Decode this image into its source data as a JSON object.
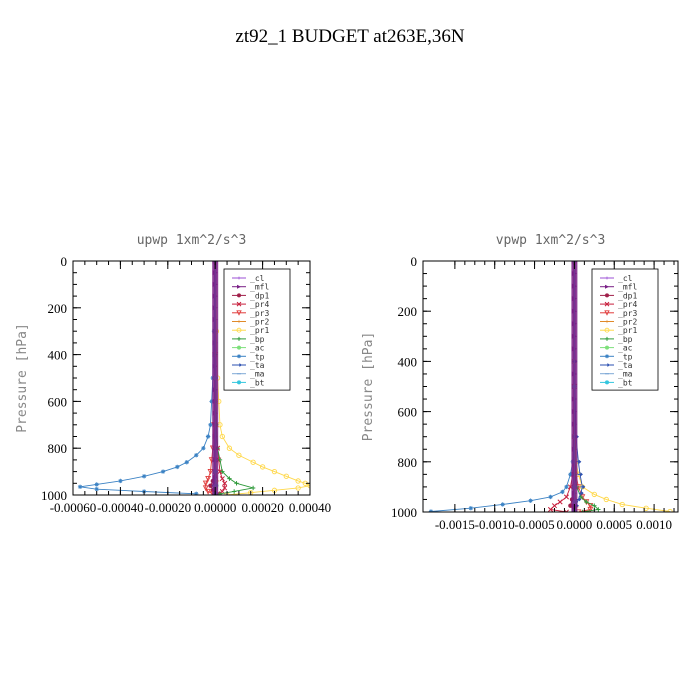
{
  "page_title": "zt92_1  BUDGET at263E,36N",
  "legend_entries": [
    {
      "label": "_cl",
      "color": "#9b4fd6",
      "marker": "star"
    },
    {
      "label": "_mfl",
      "color": "#7a1f86",
      "marker": "triangle-right"
    },
    {
      "label": "_dp1",
      "color": "#a0204a",
      "marker": "circle-filled"
    },
    {
      "label": "_pr4",
      "color": "#c71e3c",
      "marker": "x"
    },
    {
      "label": "_pr3",
      "color": "#e03c3c",
      "marker": "triangle-down"
    },
    {
      "label": "_pr2",
      "color": "#e08a2a",
      "marker": "star"
    },
    {
      "label": "_pr1",
      "color": "#ffd84a",
      "marker": "circle"
    },
    {
      "label": "_bp",
      "color": "#2e9a3a",
      "marker": "plus"
    },
    {
      "label": "_ac",
      "color": "#7de07a",
      "marker": "circle-filled"
    },
    {
      "label": "_tp",
      "color": "#3b82c4",
      "marker": "asterisk"
    },
    {
      "label": "_ta",
      "color": "#2a4fb0",
      "marker": "arrow"
    },
    {
      "label": "_ma",
      "color": "#7ea8d6",
      "marker": "dash"
    },
    {
      "label": "_bt",
      "color": "#34c6de",
      "marker": "circle-filled"
    }
  ],
  "chart_data": [
    {
      "type": "line",
      "title": "upwp   1xm^2/s^3",
      "ylabel": "Pressure [hPa]",
      "xlabel": "",
      "xlim": [
        -0.0006,
        0.0004
      ],
      "ylim": [
        1000,
        0
      ],
      "xticks": [
        -0.0006,
        -0.0004,
        -0.0002,
        0.0,
        0.0002,
        0.0004
      ],
      "xtick_labels": [
        "-0.00060",
        "-0.00040",
        "-0.00020",
        "0.00000",
        "0.00020",
        "0.00040"
      ],
      "yticks": [
        0,
        200,
        400,
        600,
        800,
        1000
      ],
      "ytick_labels": [
        "0",
        "200",
        "400",
        "600",
        "800",
        "1000"
      ],
      "series": [
        {
          "name": "_cl",
          "y": [
            0,
            50,
            100,
            150,
            200,
            250,
            300,
            350,
            400,
            450,
            500,
            550,
            600,
            650,
            700,
            750,
            800,
            850,
            900,
            925,
            950,
            975,
            990
          ],
          "x": [
            0,
            0,
            0,
            0,
            0,
            0,
            0,
            0,
            0,
            0,
            0,
            0,
            0,
            0,
            0,
            0,
            0,
            0,
            0,
            0,
            0,
            0,
            0
          ]
        },
        {
          "name": "_mfl",
          "y": [
            0,
            50,
            100,
            150,
            200,
            250,
            300,
            350,
            400,
            450,
            500,
            550,
            600,
            650,
            700,
            750,
            800,
            850,
            900,
            925,
            950,
            975,
            990
          ],
          "x": [
            0,
            0,
            0,
            0,
            0,
            0,
            0,
            0,
            0,
            0,
            0,
            0,
            0,
            0,
            0,
            0,
            0,
            0,
            0,
            0,
            0,
            0,
            0
          ]
        },
        {
          "name": "_dp1",
          "y": [
            0,
            400,
            800,
            900,
            940,
            960,
            980,
            995
          ],
          "x": [
            0,
            0,
            0,
            0,
            -1e-05,
            -2e-05,
            -1e-05,
            0
          ]
        },
        {
          "name": "_pr4",
          "y": [
            0,
            400,
            700,
            800,
            850,
            900,
            930,
            950,
            970,
            985,
            995
          ],
          "x": [
            0,
            0,
            5e-06,
            1e-05,
            1.5e-05,
            2e-05,
            3e-05,
            4e-05,
            4e-05,
            3e-05,
            1e-05
          ]
        },
        {
          "name": "_pr3",
          "y": [
            0,
            400,
            700,
            800,
            850,
            900,
            930,
            950,
            970,
            985,
            995
          ],
          "x": [
            0,
            0,
            -5e-06,
            -1e-05,
            -1.5e-05,
            -2e-05,
            -3e-05,
            -4e-05,
            -4e-05,
            -3e-05,
            -1e-05
          ]
        },
        {
          "name": "_pr2",
          "y": [
            0,
            400,
            800,
            900,
            940,
            970,
            995
          ],
          "x": [
            0,
            0,
            0,
            5e-06,
            1e-05,
            5e-06,
            0
          ]
        },
        {
          "name": "_pr1",
          "y": [
            0,
            300,
            500,
            600,
            700,
            750,
            800,
            830,
            860,
            880,
            900,
            920,
            940,
            950,
            960,
            970,
            980,
            990,
            1000
          ],
          "x": [
            0,
            5e-06,
            1e-05,
            1.5e-05,
            2e-05,
            3e-05,
            6e-05,
            0.0001,
            0.00016,
            0.0002,
            0.00025,
            0.0003,
            0.00035,
            0.00038,
            0.0004,
            0.00035,
            0.00025,
            0.00015,
            5e-05
          ]
        },
        {
          "name": "_bp",
          "y": [
            0,
            400,
            700,
            800,
            850,
            900,
            930,
            950,
            970,
            985,
            995
          ],
          "x": [
            0,
            0,
            5e-06,
            1e-05,
            2e-05,
            3e-05,
            6e-05,
            9e-05,
            0.00016,
            8e-05,
            2e-05
          ]
        },
        {
          "name": "_ac",
          "y": [
            0,
            500,
            900,
            960,
            995
          ],
          "x": [
            0,
            0,
            0,
            5e-06,
            0
          ]
        },
        {
          "name": "_tp",
          "y": [
            0,
            300,
            500,
            600,
            700,
            750,
            800,
            830,
            860,
            880,
            900,
            920,
            940,
            955,
            965,
            975,
            985,
            995
          ],
          "x": [
            0,
            -5e-06,
            -1e-05,
            -1.5e-05,
            -2e-05,
            -3e-05,
            -5e-05,
            -8e-05,
            -0.00012,
            -0.00016,
            -0.00022,
            -0.0003,
            -0.0004,
            -0.0005,
            -0.00057,
            -0.0005,
            -0.0003,
            -8e-05
          ]
        },
        {
          "name": "_ta",
          "y": [
            0,
            500,
            900,
            960,
            995
          ],
          "x": [
            0,
            0,
            0,
            -5e-06,
            0
          ]
        },
        {
          "name": "_ma",
          "y": [
            0,
            500,
            900,
            960,
            995
          ],
          "x": [
            0,
            0,
            0,
            0,
            0
          ]
        },
        {
          "name": "_bt",
          "y": [
            0,
            500,
            900,
            960,
            995
          ],
          "x": [
            0,
            0,
            0,
            3e-06,
            0
          ]
        }
      ],
      "legend_position": "top-right"
    },
    {
      "type": "line",
      "title": "vpwp   1xm^2/s^3",
      "ylabel": "Pressure [hPa]",
      "xlabel": "",
      "xlim": [
        -0.0019,
        0.0013
      ],
      "ylim": [
        1000,
        0
      ],
      "xticks": [
        -0.0015,
        -0.001,
        -0.0005,
        0.0,
        0.0005,
        0.001
      ],
      "xtick_labels": [
        "-0.0015",
        "-0.0010",
        "-0.0005",
        "0.0000",
        "0.0005",
        "0.0010"
      ],
      "yticks": [
        0,
        200,
        400,
        600,
        800,
        1000
      ],
      "ytick_labels": [
        "0",
        "200",
        "400",
        "600",
        "800",
        "1000"
      ],
      "series": [
        {
          "name": "_cl",
          "y": [
            0,
            50,
            100,
            150,
            200,
            250,
            300,
            350,
            400,
            450,
            500,
            550,
            600,
            650,
            700,
            750,
            800,
            850,
            900,
            925,
            950,
            975,
            990
          ],
          "x": [
            0,
            0,
            0,
            0,
            0,
            0,
            0,
            0,
            0,
            0,
            0,
            0,
            0,
            0,
            0,
            0,
            0,
            0,
            0,
            0,
            0,
            0,
            0
          ]
        },
        {
          "name": "_mfl",
          "y": [
            0,
            50,
            100,
            150,
            200,
            250,
            300,
            350,
            400,
            450,
            500,
            550,
            600,
            650,
            700,
            750,
            800,
            850,
            900,
            925,
            950,
            975,
            990
          ],
          "x": [
            0,
            0,
            0,
            0,
            0,
            0,
            0,
            0,
            0,
            0,
            0,
            0,
            0,
            0,
            0,
            0,
            0,
            0,
            0,
            0,
            0,
            0,
            0
          ]
        },
        {
          "name": "_dp1",
          "y": [
            0,
            500,
            900,
            950,
            975,
            995
          ],
          "x": [
            0,
            0,
            0,
            -3e-05,
            -5e-05,
            0
          ]
        },
        {
          "name": "_pr4",
          "y": [
            0,
            500,
            850,
            900,
            940,
            960,
            975,
            990,
            1000
          ],
          "x": [
            0,
            0,
            -2e-05,
            -5e-05,
            -0.0001,
            -0.00018,
            -0.00025,
            -0.0003,
            -0.0001
          ]
        },
        {
          "name": "_pr3",
          "y": [
            0,
            500,
            850,
            900,
            940,
            960,
            975,
            990,
            1000
          ],
          "x": [
            0,
            0,
            2e-05,
            5e-05,
            0.0001,
            0.00015,
            0.0002,
            0.0002,
            5e-05
          ]
        },
        {
          "name": "_pr2",
          "y": [
            0,
            500,
            900,
            950,
            980,
            998
          ],
          "x": [
            0,
            0,
            0,
            2e-05,
            3e-05,
            0
          ]
        },
        {
          "name": "_pr1",
          "y": [
            0,
            400,
            700,
            800,
            850,
            900,
            930,
            950,
            970,
            985,
            998
          ],
          "x": [
            0,
            0,
            0,
            2e-05,
            5e-05,
            0.0001,
            0.00025,
            0.0004,
            0.0006,
            0.0009,
            0.0012
          ]
        },
        {
          "name": "_bp",
          "y": [
            0,
            500,
            850,
            900,
            940,
            960,
            975,
            990,
            1000
          ],
          "x": [
            0,
            0,
            1e-05,
            3e-05,
            8e-05,
            0.00015,
            0.00025,
            0.0003,
            0.0001
          ]
        },
        {
          "name": "_ac",
          "y": [
            0,
            500,
            900,
            960,
            995
          ],
          "x": [
            0,
            0,
            0,
            1e-05,
            0
          ]
        },
        {
          "name": "_tp",
          "y": [
            0,
            400,
            700,
            800,
            850,
            900,
            920,
            940,
            955,
            970,
            985,
            998
          ],
          "x": [
            0,
            0,
            0,
            -2e-05,
            -5e-05,
            -0.0001,
            -0.00015,
            -0.0003,
            -0.00055,
            -0.0009,
            -0.0013,
            -0.0018
          ]
        },
        {
          "name": "_ta",
          "y": [
            0,
            400,
            700,
            800,
            850,
            900,
            925,
            950,
            975,
            995
          ],
          "x": [
            0,
            0,
            2e-05,
            5e-05,
            7e-05,
            0.0001,
            8e-05,
            5e-05,
            2e-05,
            0
          ]
        },
        {
          "name": "_ma",
          "y": [
            0,
            500,
            900,
            960,
            995
          ],
          "x": [
            0,
            0,
            0,
            0,
            0
          ]
        },
        {
          "name": "_bt",
          "y": [
            0,
            500,
            900,
            960,
            995
          ],
          "x": [
            0,
            0,
            0,
            5e-06,
            0
          ]
        }
      ],
      "legend_position": "top-right"
    }
  ]
}
